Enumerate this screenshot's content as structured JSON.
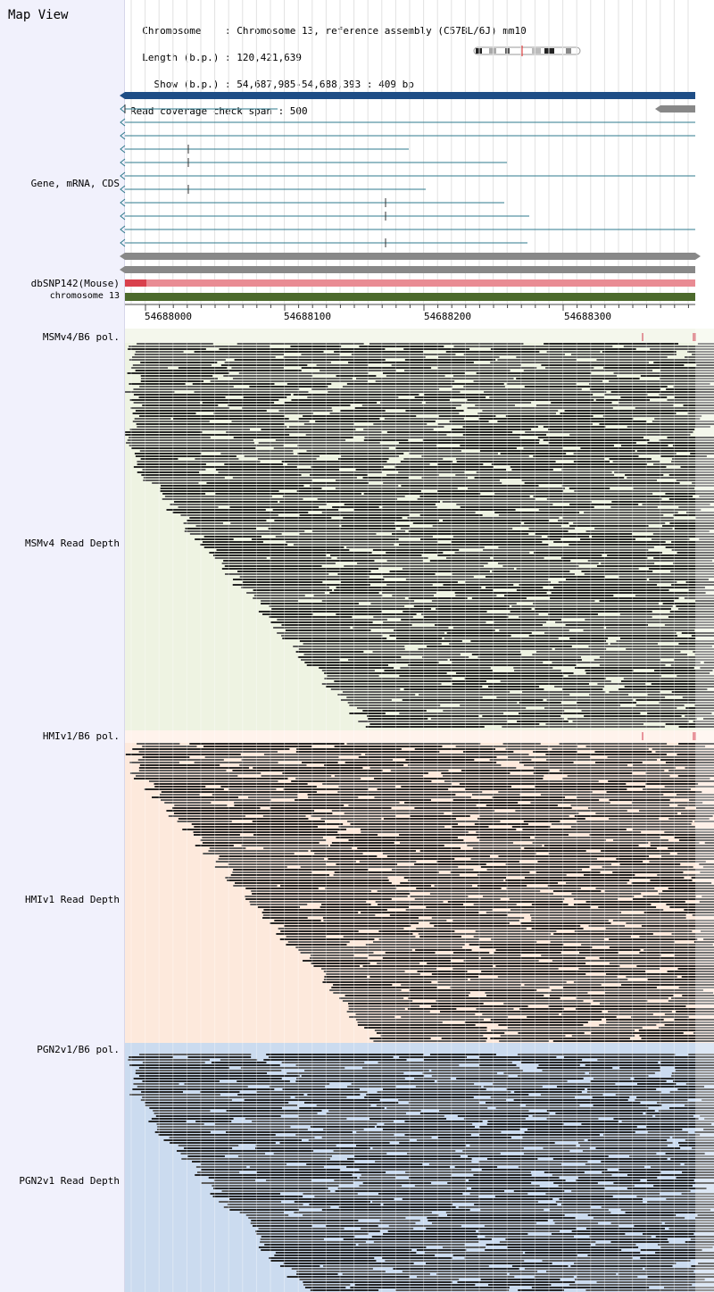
{
  "header": {
    "title": "Map View",
    "info_lines": [
      "  Chromosome    : Chromosome 13, reference assembly (C57BL/6J) mm10",
      "  Length (b.p.) : 120,421,639",
      "    Show (b.p.) : 54,687,985-54,688,393 : 409 bp",
      "Read coverage check span : 500"
    ]
  },
  "tracks": {
    "gene": "Gene, mRNA, CDS",
    "dbsnp": "dbSNP142(Mouse)",
    "chromosome": "chromosome 13",
    "msm_pol": "MSMv4/B6 pol.",
    "msm_depth": "MSMv4 Read Depth",
    "hmi_pol": "HMIv1/B6 pol.",
    "hmi_depth": "HMIv1 Read Depth",
    "pgn_pol": "PGN2v1/B6 pol.",
    "pgn_depth": "PGN2v1 Read Depth"
  },
  "ruler": {
    "ticks": [
      "54688000",
      "54688100",
      "54688200",
      "54688300"
    ]
  },
  "colors": {
    "gene_bar": "#1f4e86",
    "mrna_line": "#2e7a8c",
    "gray_bar": "#888888",
    "dbsnp": "#e98b93",
    "chromosome": "#4c6a2c",
    "msm_bg": "#eef3e2",
    "hmi_bg": "#fde9dc",
    "pgn_bg": "#cbdbef",
    "pol_mark": "#d0354a"
  }
}
